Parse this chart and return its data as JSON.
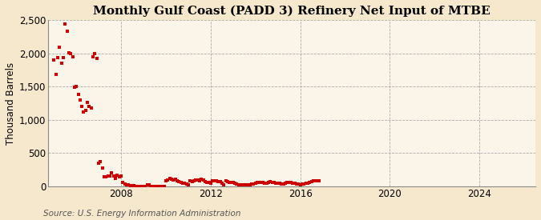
{
  "title": "Monthly Gulf Coast (PADD 3) Refinery Net Input of MTBE",
  "ylabel": "Thousand Barrels",
  "source": "Source: U.S. Energy Information Administration",
  "background_color": "#f5e8cc",
  "plot_background_color": "#faf5e8",
  "marker_color": "#cc0000",
  "marker": "s",
  "marker_size": 3.5,
  "ylim": [
    0,
    2500
  ],
  "yticks": [
    0,
    500,
    1000,
    1500,
    2000,
    2500
  ],
  "ytick_labels": [
    "0",
    "500",
    "1,000",
    "1,500",
    "2,000",
    "2,500"
  ],
  "xlim_start": 2004.75,
  "xlim_end": 2026.5,
  "xticks": [
    2008,
    2012,
    2016,
    2020,
    2024
  ],
  "grid_color": "#aaaaaa",
  "grid_style": "--",
  "title_fontsize": 11,
  "axis_fontsize": 8.5,
  "source_fontsize": 7.5,
  "data_x": [
    2005.0,
    2005.083,
    2005.167,
    2005.25,
    2005.333,
    2005.417,
    2005.5,
    2005.583,
    2005.667,
    2005.75,
    2005.833,
    2005.917,
    2006.0,
    2006.083,
    2006.167,
    2006.25,
    2006.333,
    2006.417,
    2006.5,
    2006.583,
    2006.667,
    2006.75,
    2006.833,
    2006.917,
    2007.0,
    2007.083,
    2007.167,
    2007.25,
    2007.333,
    2007.417,
    2007.5,
    2007.583,
    2007.667,
    2007.75,
    2007.833,
    2007.917,
    2008.0,
    2008.083,
    2008.167,
    2008.25,
    2008.333,
    2008.417,
    2008.5,
    2008.583,
    2008.667,
    2008.75,
    2008.833,
    2008.917,
    2009.0,
    2009.083,
    2009.167,
    2009.25,
    2009.333,
    2009.417,
    2009.5,
    2009.583,
    2009.667,
    2009.75,
    2009.833,
    2009.917,
    2010.0,
    2010.083,
    2010.167,
    2010.25,
    2010.333,
    2010.417,
    2010.5,
    2010.583,
    2010.667,
    2010.75,
    2010.833,
    2010.917,
    2011.0,
    2011.083,
    2011.167,
    2011.25,
    2011.333,
    2011.417,
    2011.5,
    2011.583,
    2011.667,
    2011.75,
    2011.833,
    2011.917,
    2012.0,
    2012.083,
    2012.167,
    2012.25,
    2012.333,
    2012.417,
    2012.5,
    2012.583,
    2012.667,
    2012.75,
    2012.833,
    2012.917,
    2013.0,
    2013.083,
    2013.167,
    2013.25,
    2013.333,
    2013.417,
    2013.5,
    2013.583,
    2013.667,
    2013.75,
    2013.833,
    2013.917,
    2014.0,
    2014.083,
    2014.167,
    2014.25,
    2014.333,
    2014.417,
    2014.5,
    2014.583,
    2014.667,
    2014.75,
    2014.833,
    2014.917,
    2015.0,
    2015.083,
    2015.167,
    2015.25,
    2015.333,
    2015.417,
    2015.5,
    2015.583,
    2015.667,
    2015.75,
    2015.833,
    2015.917,
    2016.0,
    2016.083,
    2016.167,
    2016.25,
    2016.333,
    2016.417,
    2016.5,
    2016.583,
    2016.667,
    2016.75,
    2016.833
  ],
  "data_y": [
    1900,
    1680,
    1940,
    2100,
    1850,
    1940,
    2440,
    2330,
    2010,
    2000,
    1950,
    1490,
    1500,
    1380,
    1300,
    1200,
    1120,
    1140,
    1260,
    1200,
    1180,
    1950,
    2000,
    1920,
    350,
    370,
    280,
    150,
    140,
    160,
    160,
    200,
    155,
    125,
    170,
    140,
    160,
    60,
    40,
    30,
    20,
    15,
    10,
    8,
    5,
    5,
    5,
    5,
    5,
    5,
    20,
    20,
    5,
    5,
    5,
    5,
    5,
    5,
    5,
    5,
    80,
    100,
    120,
    110,
    95,
    110,
    80,
    70,
    60,
    50,
    50,
    40,
    30,
    80,
    70,
    80,
    95,
    100,
    90,
    110,
    95,
    70,
    60,
    55,
    50,
    80,
    85,
    90,
    70,
    75,
    50,
    30,
    80,
    70,
    65,
    55,
    60,
    50,
    40,
    30,
    20,
    25,
    30,
    25,
    25,
    30,
    35,
    40,
    50,
    55,
    60,
    60,
    55,
    50,
    45,
    60,
    70,
    60,
    55,
    50,
    50,
    45,
    40,
    40,
    45,
    55,
    60,
    60,
    50,
    45,
    40,
    35,
    30,
    35,
    40,
    45,
    50,
    60,
    70,
    80,
    85,
    90,
    85
  ]
}
